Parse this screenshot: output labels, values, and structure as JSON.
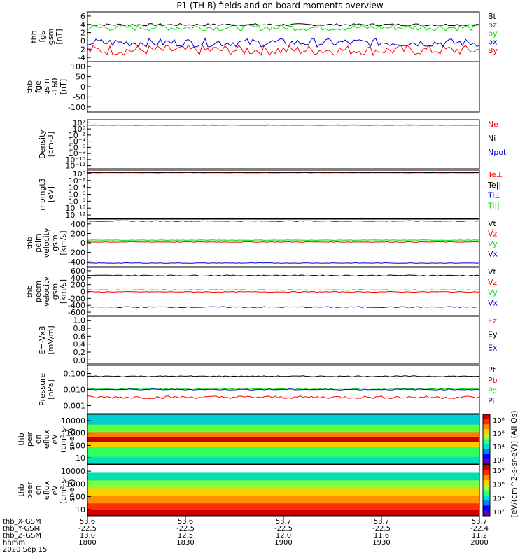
{
  "title": "P1 (TH-B) fields and on-board moments overview",
  "colors": {
    "black": "#000000",
    "red": "#ff0000",
    "green": "#00e000",
    "blue": "#0000cc",
    "orange": "#ff9900"
  },
  "chart_data": [
    {
      "type": "line",
      "ylabel": [
        "thb",
        "fgs",
        "gsm",
        "[nT]"
      ],
      "yticks": [
        "6",
        "4",
        "2",
        "0",
        "-2",
        "-4"
      ],
      "ylim": [
        -4,
        6.5
      ],
      "series": [
        {
          "name": "Bt",
          "color": "black",
          "level": 3.8,
          "noise": 0.25
        },
        {
          "name": "bz",
          "color": "red",
          "level": -1.6,
          "noise": 1.1
        },
        {
          "name": "by",
          "color": "green",
          "level": 3.2,
          "noise": 0.7
        },
        {
          "name": "bx",
          "color": "blue",
          "level": 0.0,
          "noise": 0.9
        }
      ],
      "legend": [
        "Bt",
        "bz",
        "by",
        "bx",
        "By"
      ]
    },
    {
      "type": "line",
      "ylabel": [
        "thb",
        "fge",
        "gsm",
        "-160",
        "[nT]"
      ],
      "yticks": [
        "100",
        "50",
        "0",
        "-50",
        "-100"
      ],
      "ylim": [
        -130,
        105
      ],
      "series": [],
      "legend": []
    },
    {
      "type": "line",
      "ylabel": [
        "Density",
        "[cm-3]"
      ],
      "yticks": [
        "10²",
        "10⁰",
        "10⁻²",
        "10⁻⁴",
        "10⁻⁶",
        "10⁻⁸",
        "10⁻¹⁰",
        "10⁻¹²"
      ],
      "ylim": [
        -13,
        2.2
      ],
      "series": [
        {
          "name": "Ne",
          "color": "red",
          "level": 0.5,
          "noise": 0.05
        },
        {
          "name": "Ni",
          "color": "black",
          "level": 0.55,
          "noise": 0.05
        }
      ],
      "legend": [
        "Ne",
        "Ni",
        "Npot"
      ]
    },
    {
      "type": "line",
      "ylabel": [
        "momgt3",
        "[eV]"
      ],
      "yticks": [
        "10⁰",
        "10⁻²",
        "10⁻⁴",
        "10⁻⁶",
        "10⁻⁸",
        "10⁻¹⁰",
        "10⁻¹²"
      ],
      "ylim": [
        -13,
        1.8
      ],
      "series": [
        {
          "name": "Te⊥",
          "color": "red",
          "level": 1.0,
          "noise": 0.05
        },
        {
          "name": "Te||",
          "color": "black",
          "level": 1.1,
          "noise": 0.05
        }
      ],
      "legend": [
        "Te⊥",
        "Te||",
        "Ti⊥",
        "Ti||"
      ]
    },
    {
      "type": "line",
      "ylabel": [
        "thb",
        "peim",
        "velocity",
        "gsm",
        "[km/s]"
      ],
      "yticks": [
        "400",
        "200",
        "0",
        "-200",
        "-400"
      ],
      "ylim": [
        -450,
        420
      ],
      "series": [
        {
          "name": "Vt",
          "color": "black",
          "level": 385,
          "noise": 6
        },
        {
          "name": "Vz",
          "color": "red",
          "level": 0,
          "noise": 6
        },
        {
          "name": "Vy",
          "color": "green",
          "level": 35,
          "noise": 4
        },
        {
          "name": "Vx",
          "color": "blue",
          "level": -385,
          "noise": 5
        }
      ],
      "legend": [
        "Vt",
        "Vz",
        "Vy",
        "Vx"
      ]
    },
    {
      "type": "line",
      "ylabel": [
        "thb",
        "peem",
        "velocity",
        "gsm",
        "[km/s]"
      ],
      "yticks": [
        "600",
        "400",
        "200",
        "0",
        "-200",
        "-400",
        "-600"
      ],
      "ylim": [
        -620,
        620
      ],
      "series": [
        {
          "name": "Vt",
          "color": "black",
          "level": 410,
          "noise": 14
        },
        {
          "name": "Vz",
          "color": "red",
          "level": -10,
          "noise": 10
        },
        {
          "name": "Vy",
          "color": "green",
          "level": 40,
          "noise": 12
        },
        {
          "name": "Vx",
          "color": "blue",
          "level": -400,
          "noise": 14
        }
      ],
      "legend": [
        "Vt",
        "Vz",
        "Vy",
        "Vx"
      ]
    },
    {
      "type": "line",
      "ylabel": [
        "E=-VxB",
        "[mV/m]"
      ],
      "yticks": [
        "1.0",
        "0.8",
        "0.6",
        "0.4",
        "0.2",
        "0.0"
      ],
      "ylim": [
        0,
        1.05
      ],
      "series": [],
      "legend": [
        "Ez",
        "Ey",
        "Ex"
      ]
    },
    {
      "type": "line",
      "log": true,
      "ylabel": [
        "Pressure",
        "[nPa]"
      ],
      "yticks": [
        "0.100",
        "0.010",
        "0.001"
      ],
      "ylim": [
        -3,
        -1
      ],
      "series": [
        {
          "name": "Pt",
          "color": "black",
          "level": -1.45,
          "noise": 0.02
        },
        {
          "name": "Pb",
          "color": "red",
          "level": -2.32,
          "noise": 0.06
        },
        {
          "name": "Pe",
          "color": "green",
          "level": -1.96,
          "noise": 0.02
        },
        {
          "name": "Pi",
          "color": "blue",
          "level": -2.0,
          "noise": 0.02
        }
      ],
      "legend": [
        "Pt",
        "Pb",
        "Pe",
        "Pi"
      ]
    },
    {
      "type": "heatmap",
      "ylabel": [
        "thb",
        "peir",
        "en",
        "eflux",
        "eV",
        "(cm²-s-",
        "sr-eV)"
      ],
      "yticks": [
        "10000",
        "1000",
        "100",
        "10"
      ],
      "ylim": [
        1,
        4.5
      ],
      "legend": []
    },
    {
      "type": "heatmap",
      "ylabel": [
        "thb",
        "peer",
        "en",
        "eflux",
        "eV",
        "(cm²-s-",
        "sr-eV)"
      ],
      "yticks": [
        "10000",
        "1000",
        "100",
        "10"
      ],
      "ylim": [
        0.7,
        4.5
      ],
      "legend": []
    }
  ],
  "colorbars": [
    {
      "ticks": [
        "10⁸",
        "10⁶",
        "10⁴",
        "10²"
      ]
    },
    {
      "ticks": [
        "10⁸",
        "10⁶",
        "10⁴",
        "10²"
      ]
    }
  ],
  "colorbar_label": "[eV/(cm^2-s-sr-eV)] (All Qs)",
  "xaxis": {
    "row_labels": [
      "thb_X-GSM",
      "thb_Y-GSM",
      "thb_Z-GSM",
      "hhmm",
      "2020 Sep 15"
    ],
    "columns": [
      [
        "53.6",
        "-22.5",
        "13.0",
        "1800"
      ],
      [
        "53.6",
        "-22.5",
        "12.5",
        "1830"
      ],
      [
        "53.7",
        "-22.5",
        "12.0",
        "1900"
      ],
      [
        "53.7",
        "-22.5",
        "11.6",
        "1930"
      ],
      [
        "53.7",
        "-22.4",
        "11.2",
        "2000"
      ]
    ]
  }
}
